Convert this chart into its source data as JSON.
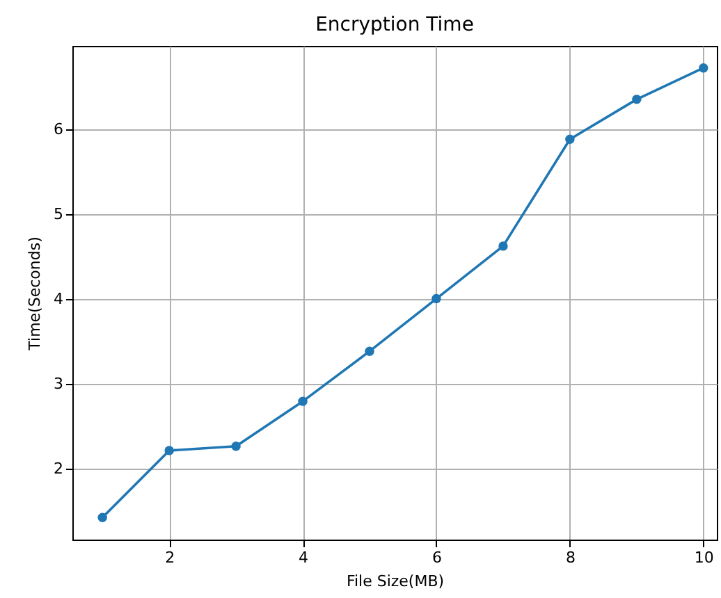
{
  "chart_data": {
    "type": "line",
    "title": "Encryption Time",
    "xlabel": "File Size(MB)",
    "ylabel": "Time(Seconds)",
    "x": [
      1,
      2,
      3,
      4,
      5,
      6,
      7,
      8,
      9,
      10
    ],
    "series": [
      {
        "color": "#1f77b4",
        "values": [
          1.42,
          2.21,
          2.26,
          2.79,
          3.38,
          4.0,
          4.62,
          5.88,
          6.35,
          6.72
        ]
      }
    ],
    "xlim": [
      0.55,
      10.2
    ],
    "ylim": [
      1.16,
      6.98
    ],
    "xticks": [
      2,
      4,
      6,
      8,
      10
    ],
    "yticks": [
      2,
      3,
      4,
      5,
      6
    ],
    "grid": true,
    "marker": "circle",
    "line_style": "solid"
  }
}
